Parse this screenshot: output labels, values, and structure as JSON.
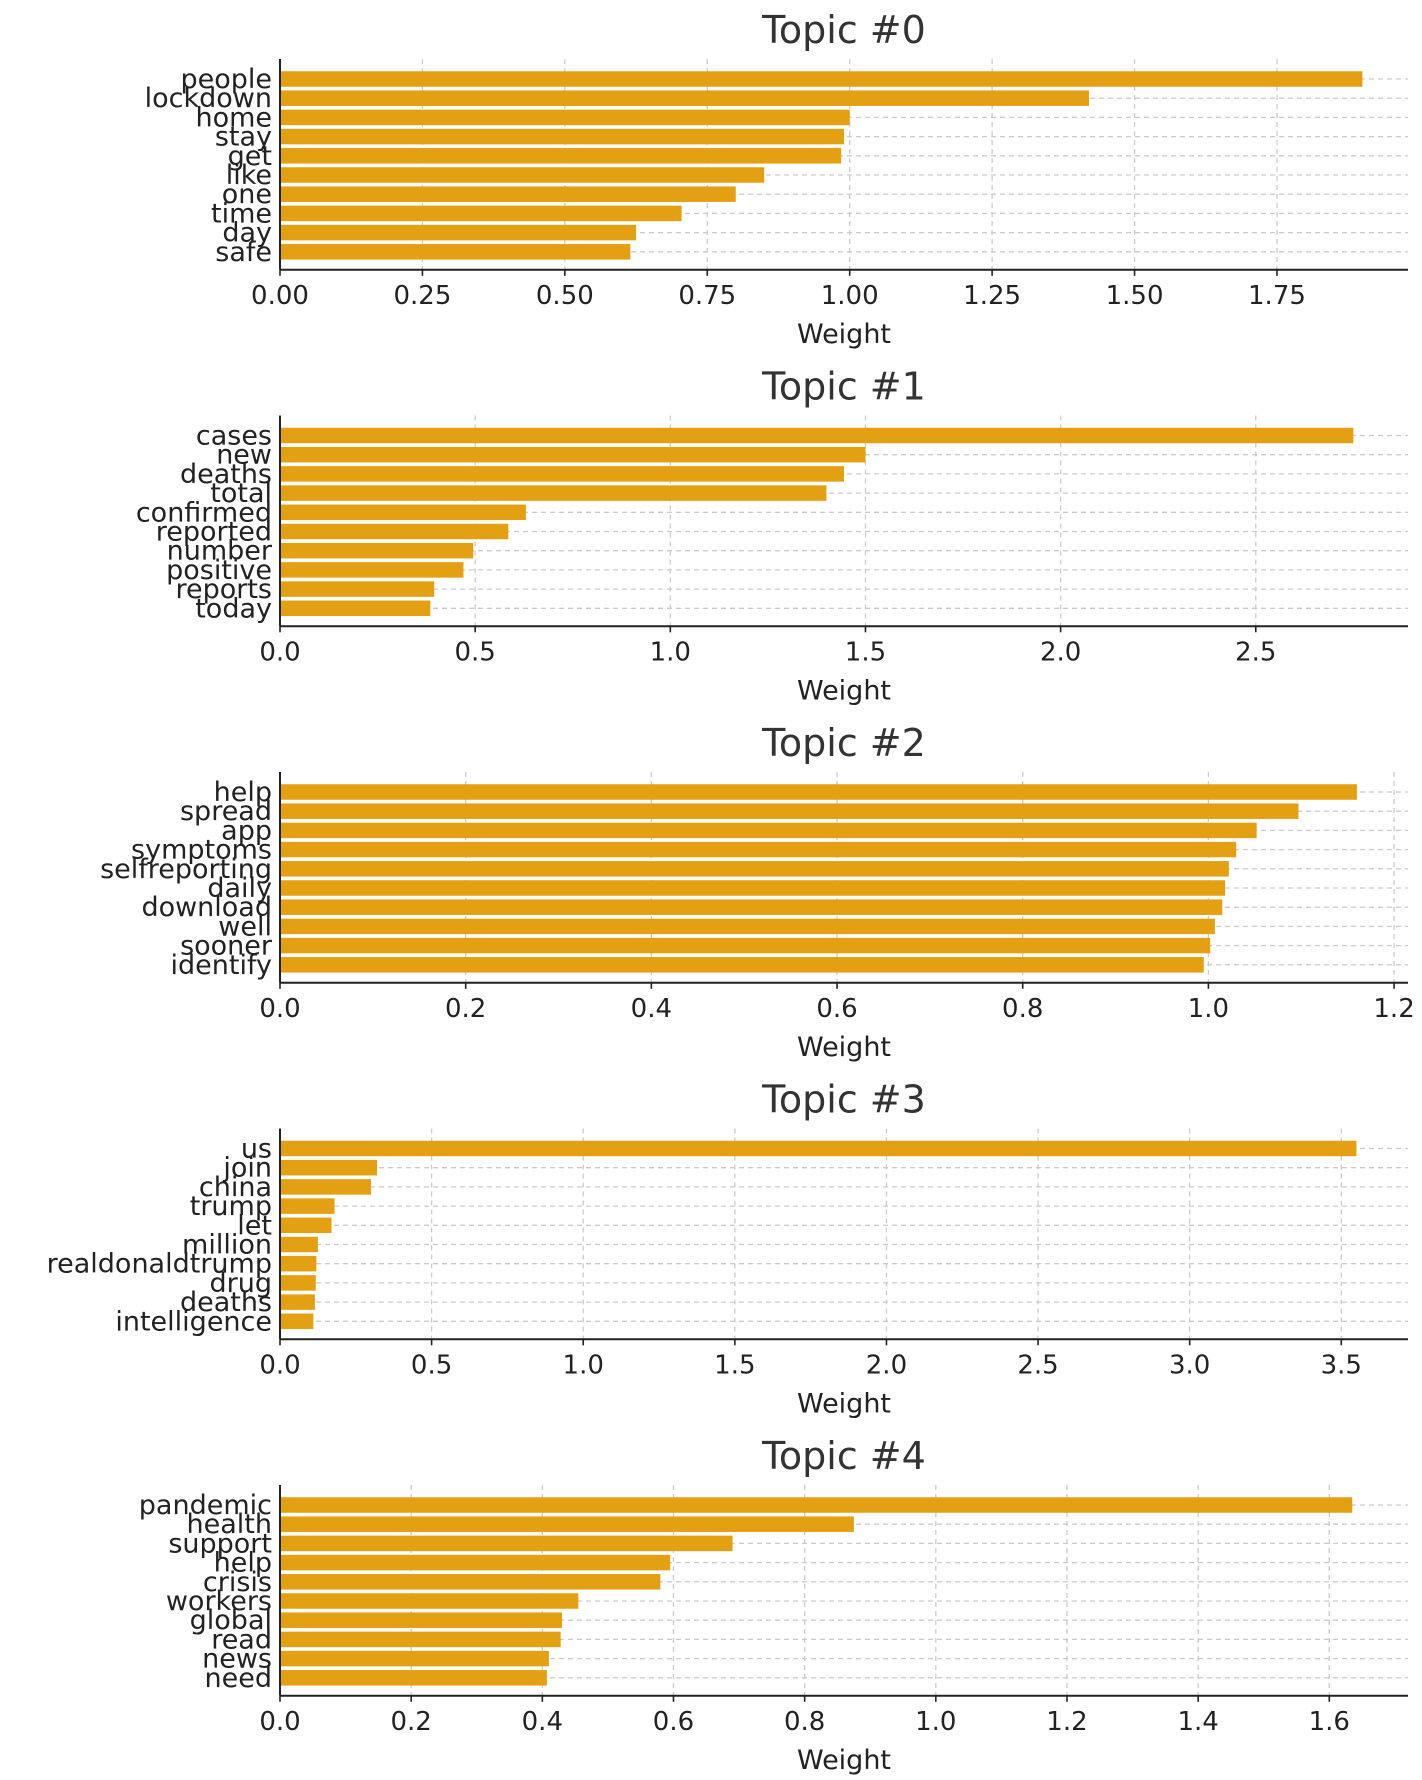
{
  "chart_data": [
    {
      "type": "bar",
      "orientation": "horizontal",
      "title": "Topic #0",
      "xlabel": "Weight",
      "categories": [
        "people",
        "lockdown",
        "home",
        "stay",
        "get",
        "like",
        "one",
        "time",
        "day",
        "safe"
      ],
      "values": [
        1.9,
        1.42,
        1.0,
        0.99,
        0.985,
        0.85,
        0.8,
        0.705,
        0.625,
        0.615
      ],
      "xlim": [
        0,
        1.98
      ],
      "xticks": [
        0.0,
        0.25,
        0.5,
        0.75,
        1.0,
        1.25,
        1.5,
        1.75
      ],
      "xtick_labels": [
        "0.00",
        "0.25",
        "0.50",
        "0.75",
        "1.00",
        "1.25",
        "1.50",
        "1.75"
      ],
      "bar_color": "#E3A012",
      "grid": true
    },
    {
      "type": "bar",
      "orientation": "horizontal",
      "title": "Topic #1",
      "xlabel": "Weight",
      "categories": [
        "cases",
        "new",
        "deaths",
        "total",
        "confirmed",
        "reported",
        "number",
        "positive",
        "reports",
        "today"
      ],
      "values": [
        2.75,
        1.5,
        1.445,
        1.4,
        0.63,
        0.585,
        0.495,
        0.47,
        0.395,
        0.385
      ],
      "xlim": [
        0,
        2.89
      ],
      "xticks": [
        0.0,
        0.5,
        1.0,
        1.5,
        2.0,
        2.5
      ],
      "xtick_labels": [
        "0.0",
        "0.5",
        "1.0",
        "1.5",
        "2.0",
        "2.5"
      ],
      "bar_color": "#E3A012",
      "grid": true
    },
    {
      "type": "bar",
      "orientation": "horizontal",
      "title": "Topic #2",
      "xlabel": "Weight",
      "categories": [
        "help",
        "spread",
        "app",
        "symptoms",
        "selfreporting",
        "daily",
        "download",
        "well",
        "sooner",
        "identify"
      ],
      "values": [
        1.16,
        1.097,
        1.052,
        1.03,
        1.022,
        1.018,
        1.015,
        1.007,
        1.002,
        0.995
      ],
      "xlim": [
        0,
        1.215
      ],
      "xticks": [
        0.0,
        0.2,
        0.4,
        0.6,
        0.8,
        1.0,
        1.2
      ],
      "xtick_labels": [
        "0.0",
        "0.2",
        "0.4",
        "0.6",
        "0.8",
        "1.0",
        "1.2"
      ],
      "bar_color": "#E3A012",
      "grid": true
    },
    {
      "type": "bar",
      "orientation": "horizontal",
      "title": "Topic #3",
      "xlabel": "Weight",
      "categories": [
        "us",
        "join",
        "china",
        "trump",
        "let",
        "million",
        "realdonaldtrump",
        "drug",
        "deaths",
        "intelligence"
      ],
      "values": [
        3.55,
        0.32,
        0.3,
        0.18,
        0.17,
        0.125,
        0.12,
        0.118,
        0.115,
        0.11
      ],
      "xlim": [
        0,
        3.72
      ],
      "xticks": [
        0.0,
        0.5,
        1.0,
        1.5,
        2.0,
        2.5,
        3.0,
        3.5
      ],
      "xtick_labels": [
        "0.0",
        "0.5",
        "1.0",
        "1.5",
        "2.0",
        "2.5",
        "3.0",
        "3.5"
      ],
      "bar_color": "#E3A012",
      "grid": true
    },
    {
      "type": "bar",
      "orientation": "horizontal",
      "title": "Topic #4",
      "xlabel": "Weight",
      "categories": [
        "pandemic",
        "health",
        "support",
        "help",
        "crisis",
        "workers",
        "global",
        "read",
        "news",
        "need"
      ],
      "values": [
        1.635,
        0.875,
        0.69,
        0.595,
        0.58,
        0.455,
        0.43,
        0.428,
        0.41,
        0.407
      ],
      "xlim": [
        0,
        1.72
      ],
      "xticks": [
        0.0,
        0.2,
        0.4,
        0.6,
        0.8,
        1.0,
        1.2,
        1.4,
        1.6
      ],
      "xtick_labels": [
        "0.0",
        "0.2",
        "0.4",
        "0.6",
        "0.8",
        "1.0",
        "1.2",
        "1.4",
        "1.6"
      ],
      "bar_color": "#E3A012",
      "grid": true
    }
  ]
}
